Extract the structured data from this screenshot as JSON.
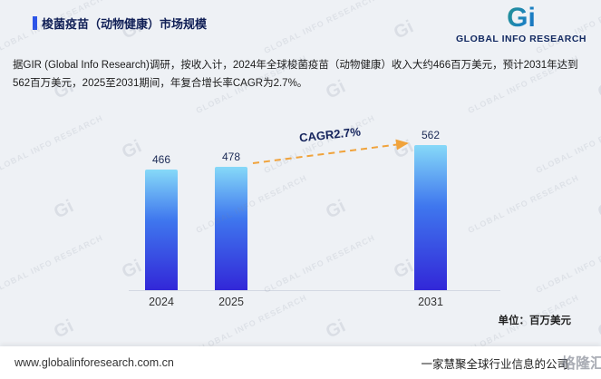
{
  "header": {
    "title": "梭菌疫苗（动物健康）市场规模",
    "logo": {
      "gi": "Gi",
      "brand": "GLOBAL INFO RESEARCH"
    }
  },
  "intro": {
    "text": "据GIR (Global Info Research)调研，按收入计，2024年全球梭菌疫苗（动物健康）收入大约466百万美元，预计2031年达到562百万美元，2025至2031期间，年复合增长率CAGR为2.7%。"
  },
  "chart_data": {
    "type": "bar",
    "title": "梭菌疫苗（动物健康）市场规模",
    "categories": [
      "2024",
      "2025",
      "2031"
    ],
    "values": [
      466,
      478,
      562
    ],
    "xlabel": "",
    "ylabel": "",
    "ylim": [
      0,
      600
    ],
    "unit_label": "单位：百万美元",
    "annotation": "CAGR2.7%",
    "legend": [],
    "grid": false,
    "bar_color_top": "#86d9f8",
    "bar_color_bottom": "#3227d8",
    "arrow_color": "#f0a33c"
  },
  "watermark": {
    "gi": "Gi",
    "text": "GLOBAL INFO RESEARCH"
  },
  "footer": {
    "url": "www.globalinforesearch.com.cn",
    "slogan": "一家慧聚全球行业信息的公司",
    "watermark": "格隆汇"
  },
  "colors": {
    "accent": "#2d55e8",
    "title": "#101f56",
    "background": "#eef1f5",
    "cagr_text": "#14235c"
  }
}
